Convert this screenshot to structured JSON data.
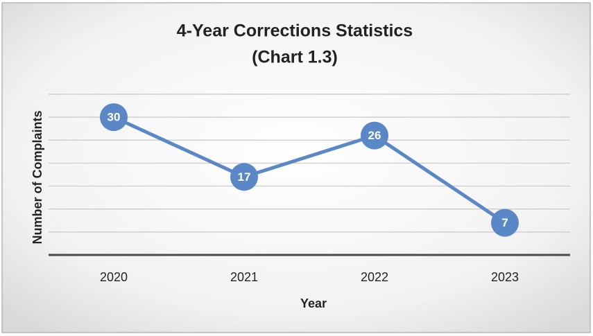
{
  "chart_data": {
    "type": "line",
    "title": "4-Year Corrections Statistics",
    "subtitle": "(Chart 1.3)",
    "x_label": "Year",
    "y_label": "Number of Complaints",
    "categories": [
      "2020",
      "2021",
      "2022",
      "2023"
    ],
    "series": [
      {
        "name": "Complaints",
        "color": "#5a88c6",
        "values": [
          30,
          17,
          26,
          7
        ]
      }
    ],
    "ylim": [
      0,
      35
    ],
    "yticks": [
      0,
      5,
      10,
      15,
      20,
      25,
      30,
      35
    ],
    "grid": true,
    "data_labels": true
  }
}
